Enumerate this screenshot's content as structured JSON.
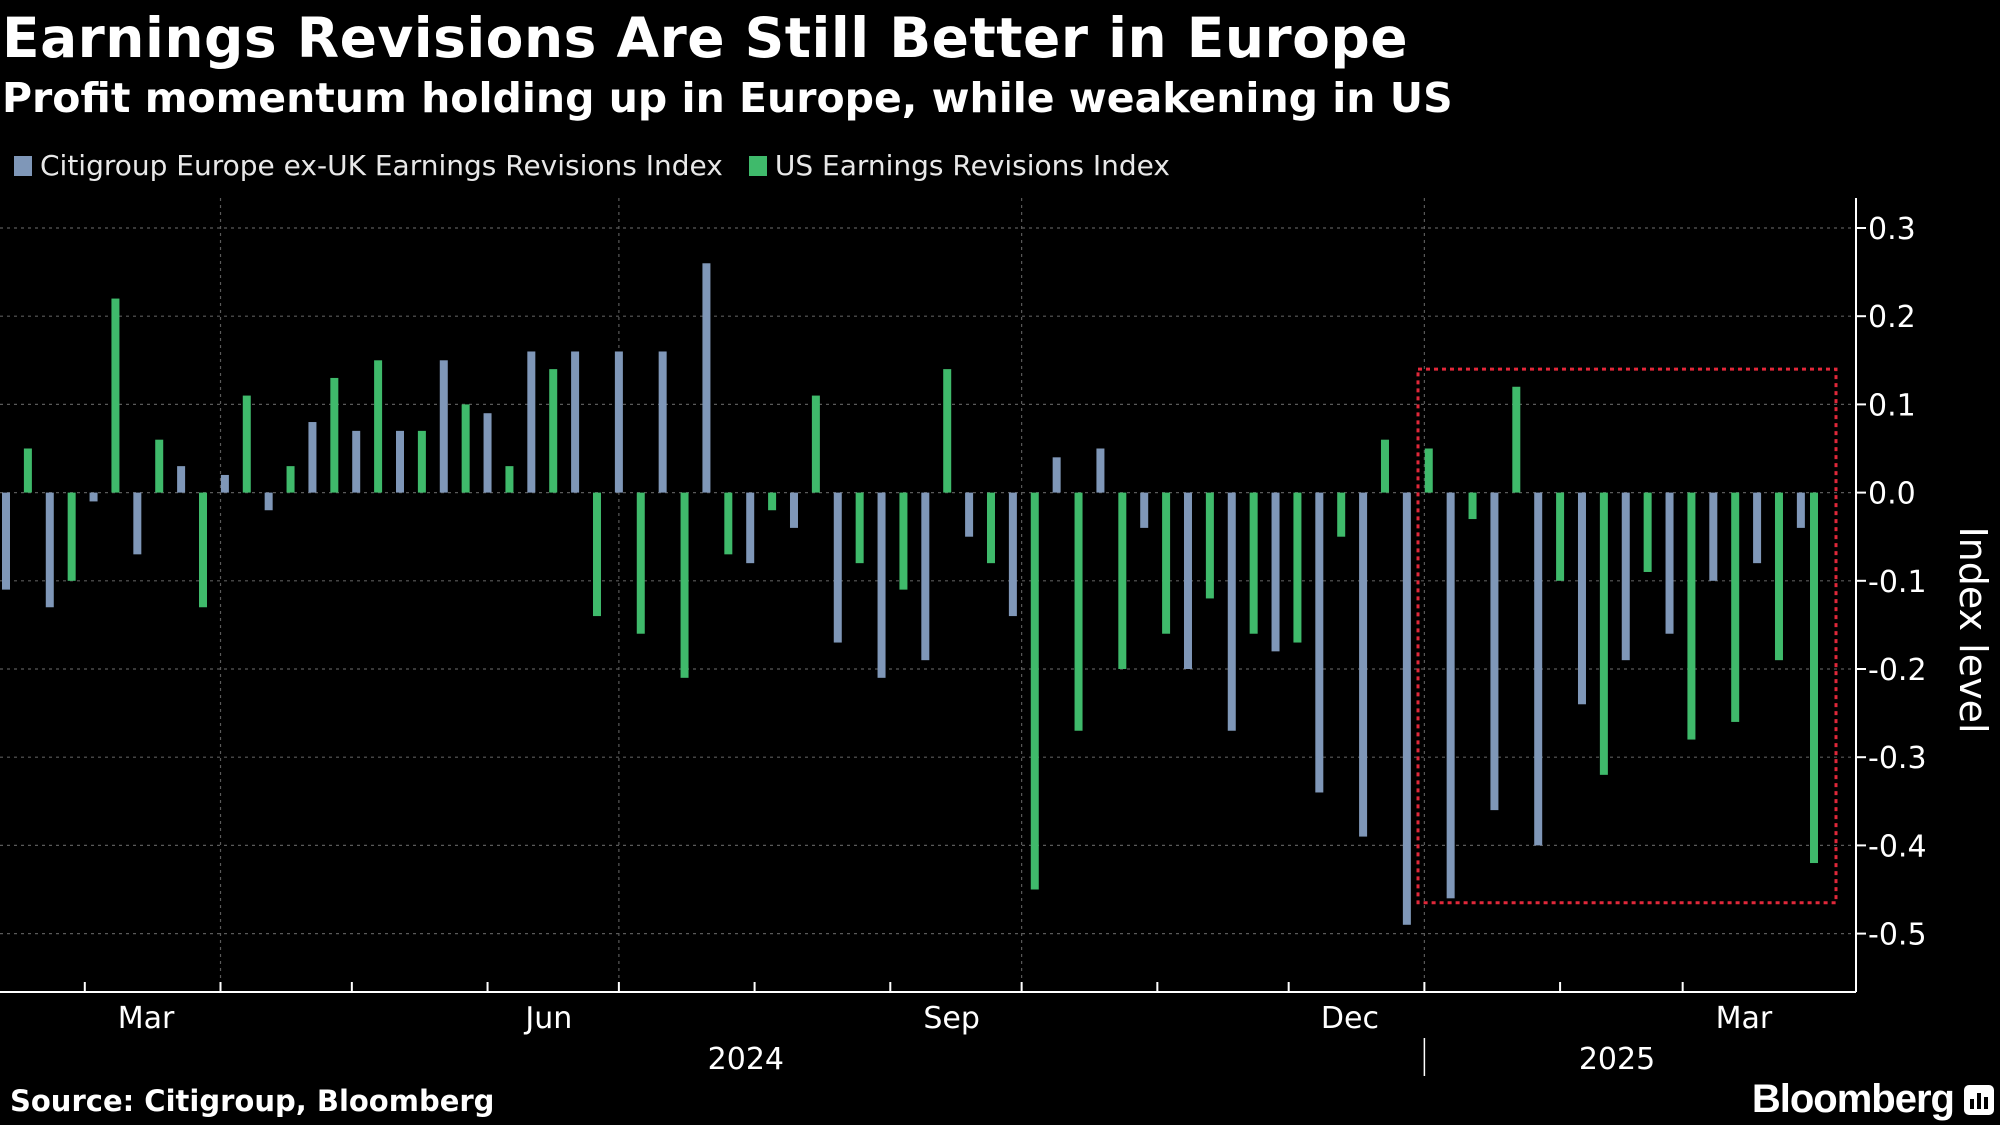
{
  "title": "Earnings Revisions Are Still Better in Europe",
  "subtitle": "Profit momentum holding up in Europe, while weakening in US",
  "legend": {
    "europe": "Citigroup Europe ex-UK Earnings Revisions Index",
    "us": "US Earnings Revisions Index"
  },
  "source": "Source: Citigroup, Bloomberg",
  "brand": "Bloomberg",
  "colors": {
    "background": "#000000",
    "europe": "#7f97b8",
    "us": "#3fba6b",
    "grid": "#5a5a5a",
    "highlight_box": "#e0283a"
  },
  "chart_data": {
    "type": "bar",
    "ylabel": "Index level",
    "ylim": [
      -0.55,
      0.3
    ],
    "yticks": [
      0.3,
      0.2,
      0.1,
      0.0,
      -0.1,
      -0.2,
      -0.3,
      -0.4,
      -0.5
    ],
    "ytick_labels": [
      "0.3",
      "0.2",
      "0.1",
      "0.0",
      "-0.1",
      "-0.2",
      "-0.3",
      "-0.4",
      "-0.5"
    ],
    "xlim": [
      "2024-02-12",
      "2025-03-31"
    ],
    "month_labels": [
      {
        "label": "Mar",
        "date": "2024-03-15"
      },
      {
        "label": "Jun",
        "date": "2024-06-15"
      },
      {
        "label": "Sep",
        "date": "2024-09-15"
      },
      {
        "label": "Dec",
        "date": "2024-12-15"
      },
      {
        "label": "Mar",
        "date": "2025-03-15"
      }
    ],
    "year_labels": [
      {
        "label": "2024",
        "date": "2024-07-30"
      },
      {
        "label": "2025",
        "date": "2025-02-14"
      }
    ],
    "highlight": {
      "start": "2024-12-31",
      "end": "2025-03-31",
      "ymin": -0.465,
      "ymax": 0.14
    },
    "series": [
      {
        "name": "Citigroup Europe ex-UK Earnings Revisions Index",
        "key": "europe",
        "dates": [
          "2024-02-12",
          "2024-02-22",
          "2024-03-03",
          "2024-03-13",
          "2024-03-23",
          "2024-04-02",
          "2024-04-12",
          "2024-04-22",
          "2024-05-02",
          "2024-05-12",
          "2024-05-22",
          "2024-06-01",
          "2024-06-11",
          "2024-06-21",
          "2024-07-01",
          "2024-07-11",
          "2024-07-21",
          "2024-07-31",
          "2024-08-10",
          "2024-08-20",
          "2024-08-30",
          "2024-09-09",
          "2024-09-19",
          "2024-09-29",
          "2024-10-09",
          "2024-10-19",
          "2024-10-29",
          "2024-11-08",
          "2024-11-18",
          "2024-11-28",
          "2024-12-08",
          "2024-12-18",
          "2024-12-28",
          "2025-01-07",
          "2025-01-17",
          "2025-01-27",
          "2025-02-06",
          "2025-02-16",
          "2025-02-26",
          "2025-03-08",
          "2025-03-18",
          "2025-03-28"
        ],
        "values": [
          -0.11,
          -0.13,
          -0.01,
          -0.07,
          0.03,
          0.02,
          -0.02,
          0.08,
          0.07,
          0.07,
          0.15,
          0.09,
          0.16,
          0.16,
          0.16,
          0.16,
          0.26,
          -0.08,
          -0.04,
          -0.17,
          -0.21,
          -0.19,
          -0.05,
          -0.14,
          0.04,
          0.05,
          -0.04,
          -0.2,
          -0.27,
          -0.18,
          -0.34,
          -0.39,
          -0.49,
          -0.46,
          -0.36,
          -0.4,
          -0.24,
          -0.19,
          -0.16,
          -0.1,
          -0.08,
          -0.04
        ]
      },
      {
        "name": "US Earnings Revisions Index",
        "key": "us",
        "dates": [
          "2024-02-17",
          "2024-02-27",
          "2024-03-08",
          "2024-03-18",
          "2024-03-28",
          "2024-04-07",
          "2024-04-17",
          "2024-04-27",
          "2024-05-07",
          "2024-05-17",
          "2024-05-27",
          "2024-06-06",
          "2024-06-16",
          "2024-06-26",
          "2024-07-06",
          "2024-07-16",
          "2024-07-26",
          "2024-08-05",
          "2024-08-15",
          "2024-08-25",
          "2024-09-04",
          "2024-09-14",
          "2024-09-24",
          "2024-10-04",
          "2024-10-14",
          "2024-10-24",
          "2024-11-03",
          "2024-11-13",
          "2024-11-23",
          "2024-12-03",
          "2024-12-13",
          "2024-12-23",
          "2025-01-02",
          "2025-01-12",
          "2025-01-22",
          "2025-02-01",
          "2025-02-11",
          "2025-02-21",
          "2025-03-03",
          "2025-03-13",
          "2025-03-23",
          "2025-03-31"
        ],
        "values": [
          0.05,
          -0.1,
          0.22,
          0.06,
          -0.13,
          0.11,
          0.03,
          0.13,
          0.15,
          0.07,
          0.1,
          0.03,
          0.14,
          -0.14,
          -0.16,
          -0.21,
          -0.07,
          -0.02,
          0.11,
          -0.08,
          -0.11,
          0.14,
          -0.08,
          -0.45,
          -0.27,
          -0.2,
          -0.16,
          -0.12,
          -0.16,
          -0.17,
          -0.05,
          0.06,
          0.05,
          -0.03,
          0.12,
          -0.1,
          -0.32,
          -0.09,
          -0.28,
          -0.26,
          -0.19,
          -0.42
        ]
      }
    ]
  }
}
